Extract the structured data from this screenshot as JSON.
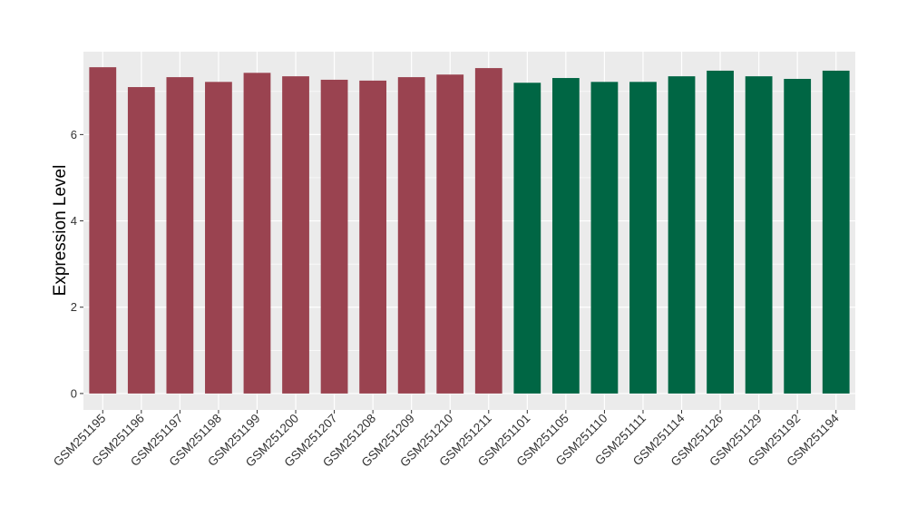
{
  "chart_data": {
    "type": "bar",
    "title": "",
    "xlabel": "",
    "ylabel": "Expression Level",
    "ylim": [
      -0.38,
      7.92
    ],
    "yticks": [
      0,
      2,
      4,
      6
    ],
    "grid": true,
    "categories": [
      "GSM251195",
      "GSM251196",
      "GSM251197",
      "GSM251198",
      "GSM251199",
      "GSM251200",
      "GSM251207",
      "GSM251208",
      "GSM251209",
      "GSM251210",
      "GSM251211",
      "GSM251101",
      "GSM251105",
      "GSM251110",
      "GSM251111",
      "GSM251114",
      "GSM251126",
      "GSM251129",
      "GSM251192",
      "GSM251194"
    ],
    "values": [
      7.56,
      7.1,
      7.33,
      7.22,
      7.43,
      7.35,
      7.27,
      7.25,
      7.33,
      7.39,
      7.54,
      7.2,
      7.31,
      7.22,
      7.22,
      7.35,
      7.48,
      7.35,
      7.29,
      7.48
    ],
    "group_colors": [
      "#9a4350",
      "#9a4350",
      "#9a4350",
      "#9a4350",
      "#9a4350",
      "#9a4350",
      "#9a4350",
      "#9a4350",
      "#9a4350",
      "#9a4350",
      "#9a4350",
      "#006644",
      "#006644",
      "#006644",
      "#006644",
      "#006644",
      "#006644",
      "#006644",
      "#006644",
      "#006644"
    ],
    "panel_background": "#ebebeb"
  }
}
